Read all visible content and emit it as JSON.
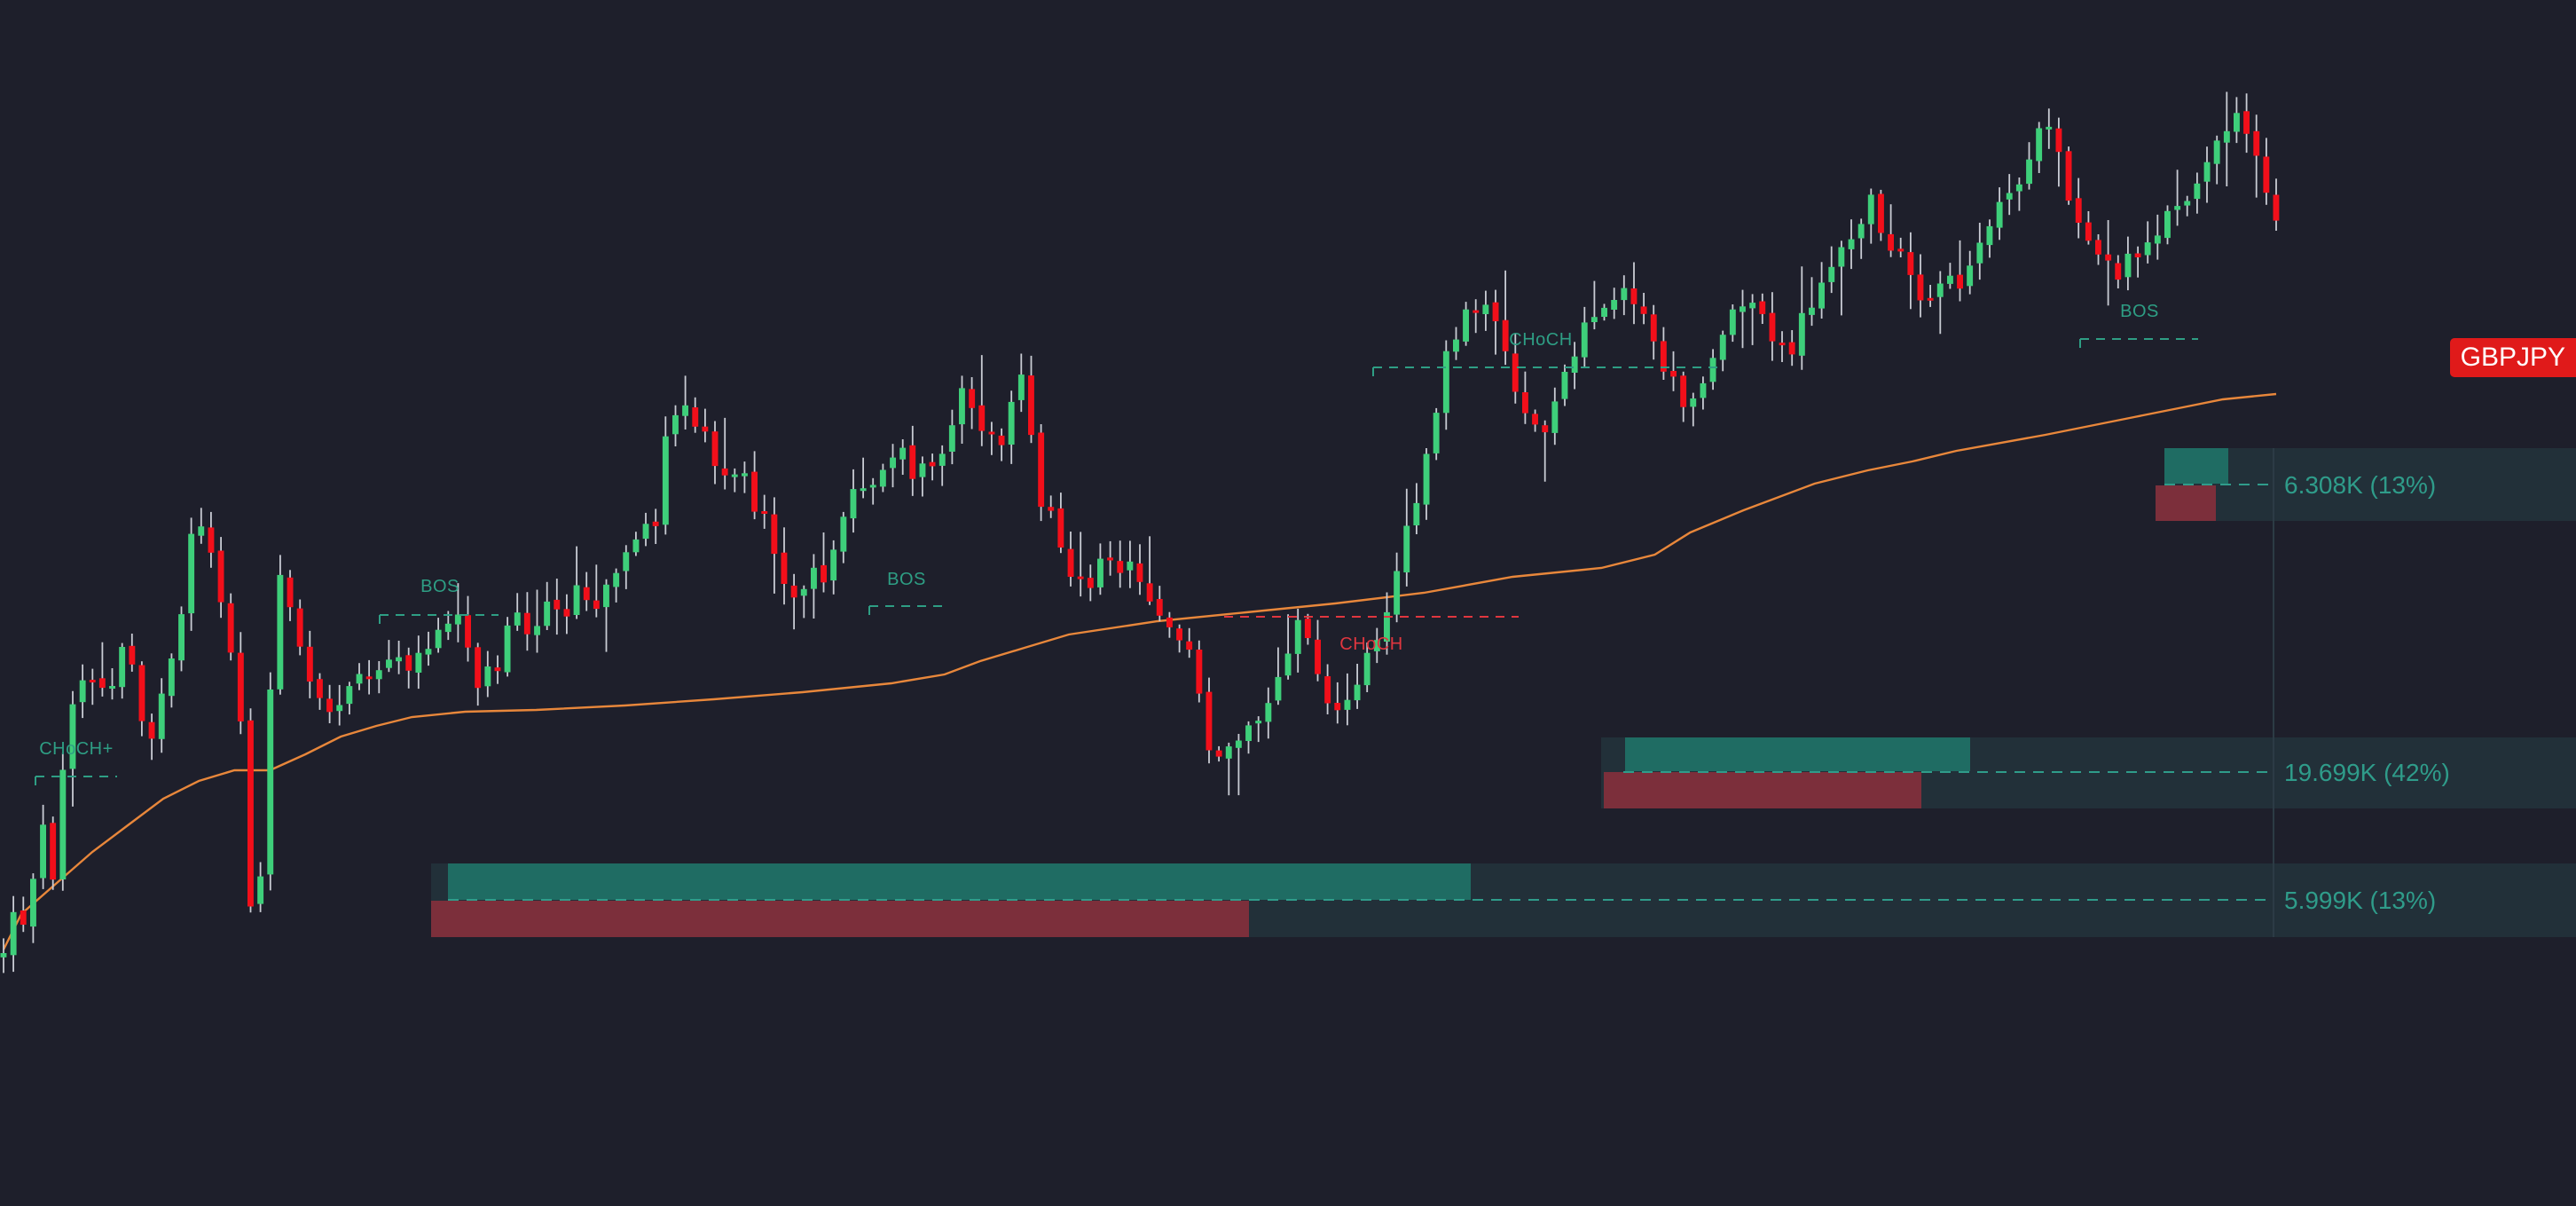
{
  "symbol": "GBPJPY",
  "colors": {
    "background": "#1e1f2b",
    "bullish_candle": "#3ecf7a",
    "bearish_candle": "#f20f1a",
    "wick": "#c9ccd4",
    "moving_average": "#e8873b",
    "bullish_structure": "#2e9e84",
    "bearish_structure": "#e0363f",
    "zone_label": "#2f9c8a",
    "bull_volume_bar": "#1f6c63",
    "bear_volume_bar": "#7c2f3b",
    "zone_background": "#223039",
    "symbol_badge": "#e01a1a"
  },
  "chart_data": {
    "type": "candlestick",
    "title": "",
    "xlabel": "",
    "ylabel": "",
    "grid": false,
    "legend": "none",
    "price_range": [
      0,
      1359
    ],
    "candle_count": 231,
    "anchors": [
      [
        0,
        1070
      ],
      [
        10,
        1010
      ],
      [
        12,
        1050
      ],
      [
        20,
        935
      ],
      [
        24,
        935
      ],
      [
        27,
        1010
      ],
      [
        32,
        880
      ],
      [
        38,
        790
      ],
      [
        46,
        760
      ],
      [
        60,
        790
      ],
      [
        68,
        720
      ],
      [
        76,
        760
      ],
      [
        82,
        860
      ],
      [
        85,
        810
      ],
      [
        92,
        780
      ],
      [
        100,
        715
      ],
      [
        104,
        640
      ],
      [
        110,
        580
      ],
      [
        118,
        620
      ],
      [
        126,
        700
      ],
      [
        132,
        780
      ],
      [
        134,
        800
      ],
      [
        138,
        950
      ],
      [
        142,
        1065
      ],
      [
        148,
        950
      ],
      [
        152,
        760
      ],
      [
        157,
        655
      ],
      [
        163,
        690
      ],
      [
        170,
        750
      ],
      [
        178,
        775
      ],
      [
        186,
        800
      ],
      [
        192,
        790
      ],
      [
        200,
        740
      ],
      [
        208,
        770
      ],
      [
        216,
        740
      ],
      [
        224,
        745
      ],
      [
        232,
        770
      ],
      [
        238,
        720
      ],
      [
        244,
        725
      ],
      [
        252,
        700
      ],
      [
        260,
        690
      ],
      [
        268,
        770
      ],
      [
        274,
        760
      ],
      [
        282,
        740
      ],
      [
        286,
        700
      ],
      [
        290,
        670
      ],
      [
        296,
        710
      ],
      [
        304,
        690
      ],
      [
        308,
        670
      ],
      [
        312,
        700
      ],
      [
        318,
        690
      ],
      [
        326,
        660
      ],
      [
        334,
        690
      ],
      [
        342,
        670
      ],
      [
        348,
        645
      ],
      [
        356,
        630
      ],
      [
        362,
        600
      ],
      [
        370,
        585
      ],
      [
        376,
        500
      ],
      [
        382,
        470
      ],
      [
        388,
        455
      ],
      [
        394,
        480
      ],
      [
        398,
        490
      ],
      [
        402,
        510
      ],
      [
        408,
        520
      ],
      [
        414,
        540
      ],
      [
        420,
        540
      ],
      [
        425,
        560
      ],
      [
        428,
        575
      ],
      [
        434,
        590
      ],
      [
        440,
        640
      ],
      [
        446,
        670
      ],
      [
        452,
        660
      ],
      [
        458,
        640
      ],
      [
        464,
        650
      ],
      [
        470,
        640
      ],
      [
        476,
        590
      ],
      [
        480,
        560
      ],
      [
        486,
        550
      ],
      [
        492,
        540
      ],
      [
        498,
        530
      ],
      [
        504,
        510
      ],
      [
        508,
        500
      ],
      [
        512,
        520
      ],
      [
        518,
        540
      ],
      [
        526,
        520
      ],
      [
        530,
        520
      ],
      [
        536,
        505
      ],
      [
        540,
        470
      ],
      [
        544,
        450
      ],
      [
        548,
        460
      ],
      [
        552,
        480
      ],
      [
        558,
        470
      ],
      [
        564,
        490
      ],
      [
        568,
        500
      ],
      [
        572,
        450
      ],
      [
        578,
        420
      ],
      [
        586,
        540
      ],
      [
        588,
        560
      ],
      [
        592,
        580
      ],
      [
        596,
        590
      ],
      [
        598,
        590
      ],
      [
        602,
        620
      ],
      [
        606,
        640
      ],
      [
        614,
        660
      ],
      [
        618,
        650
      ],
      [
        624,
        610
      ],
      [
        630,
        630
      ],
      [
        634,
        640
      ],
      [
        644,
        640
      ],
      [
        648,
        660
      ],
      [
        652,
        680
      ],
      [
        658,
        700
      ],
      [
        664,
        720
      ],
      [
        672,
        730
      ],
      [
        676,
        738
      ],
      [
        680,
        800
      ],
      [
        686,
        850
      ],
      [
        692,
        870
      ],
      [
        698,
        840
      ],
      [
        706,
        820
      ],
      [
        710,
        810
      ],
      [
        716,
        800
      ],
      [
        720,
        780
      ],
      [
        724,
        760
      ],
      [
        728,
        740
      ],
      [
        732,
        730
      ],
      [
        736,
        700
      ],
      [
        740,
        710
      ],
      [
        744,
        760
      ],
      [
        748,
        780
      ],
      [
        752,
        800
      ],
      [
        758,
        790
      ],
      [
        764,
        800
      ],
      [
        770,
        770
      ],
      [
        776,
        730
      ],
      [
        782,
        700
      ],
      [
        788,
        660
      ],
      [
        794,
        610
      ],
      [
        800,
        570
      ],
      [
        804,
        560
      ],
      [
        808,
        520
      ],
      [
        812,
        500
      ],
      [
        814,
        440
      ],
      [
        818,
        410
      ],
      [
        824,
        380
      ],
      [
        830,
        360
      ],
      [
        836,
        340
      ],
      [
        842,
        330
      ],
      [
        848,
        360
      ],
      [
        856,
        420
      ],
      [
        860,
        450
      ],
      [
        866,
        470
      ],
      [
        872,
        490
      ],
      [
        878,
        460
      ],
      [
        884,
        440
      ],
      [
        890,
        410
      ],
      [
        896,
        380
      ],
      [
        904,
        350
      ],
      [
        912,
        330
      ],
      [
        920,
        320
      ],
      [
        928,
        350
      ],
      [
        936,
        380
      ],
      [
        944,
        420
      ],
      [
        952,
        450
      ],
      [
        958,
        440
      ],
      [
        964,
        430
      ],
      [
        970,
        400
      ],
      [
        976,
        380
      ],
      [
        982,
        360
      ],
      [
        988,
        340
      ],
      [
        994,
        340
      ],
      [
        1000,
        360
      ],
      [
        1006,
        380
      ],
      [
        1012,
        400
      ],
      [
        1016,
        390
      ],
      [
        1022,
        350
      ],
      [
        1026,
        340
      ],
      [
        1032,
        320
      ],
      [
        1038,
        300
      ],
      [
        1046,
        280
      ],
      [
        1048,
        270
      ],
      [
        1052,
        260
      ],
      [
        1056,
        240
      ],
      [
        1060,
        230
      ],
      [
        1064,
        250
      ],
      [
        1068,
        260
      ],
      [
        1074,
        280
      ],
      [
        1078,
        300
      ],
      [
        1082,
        320
      ],
      [
        1086,
        340
      ],
      [
        1090,
        350
      ],
      [
        1098,
        330
      ],
      [
        1104,
        320
      ],
      [
        1110,
        320
      ],
      [
        1114,
        300
      ],
      [
        1118,
        280
      ],
      [
        1122,
        270
      ],
      [
        1126,
        250
      ],
      [
        1130,
        240
      ],
      [
        1134,
        230
      ],
      [
        1138,
        220
      ],
      [
        1142,
        210
      ],
      [
        1146,
        190
      ],
      [
        1150,
        170
      ],
      [
        1154,
        160
      ],
      [
        1158,
        150
      ],
      [
        1160,
        150
      ],
      [
        1166,
        180
      ],
      [
        1170,
        200
      ],
      [
        1174,
        240
      ],
      [
        1178,
        260
      ],
      [
        1182,
        270
      ],
      [
        1186,
        280
      ],
      [
        1190,
        290
      ],
      [
        1194,
        300
      ],
      [
        1198,
        310
      ],
      [
        1204,
        300
      ],
      [
        1208,
        290
      ],
      [
        1212,
        280
      ],
      [
        1216,
        270
      ],
      [
        1220,
        260
      ],
      [
        1224,
        250
      ],
      [
        1230,
        240
      ],
      [
        1236,
        230
      ],
      [
        1242,
        220
      ],
      [
        1248,
        200
      ],
      [
        1254,
        180
      ],
      [
        1256,
        170
      ],
      [
        1258,
        160
      ],
      [
        1262,
        150
      ],
      [
        1266,
        140
      ],
      [
        1272,
        130
      ],
      [
        1278,
        170
      ],
      [
        1282,
        200
      ],
      [
        1286,
        220
      ],
      [
        1290,
        240
      ]
    ],
    "moving_average": [
      [
        0,
        1070
      ],
      [
        20,
        1030
      ],
      [
        60,
        995
      ],
      [
        100,
        960
      ],
      [
        140,
        930
      ],
      [
        180,
        900
      ],
      [
        220,
        880
      ],
      [
        260,
        868
      ],
      [
        300,
        868
      ],
      [
        340,
        850
      ],
      [
        380,
        830
      ],
      [
        420,
        818
      ],
      [
        460,
        808
      ],
      [
        520,
        802
      ],
      [
        600,
        800
      ],
      [
        700,
        795
      ],
      [
        800,
        788
      ],
      [
        900,
        780
      ],
      [
        1000,
        770
      ],
      [
        1060,
        760
      ],
      [
        1100,
        745
      ],
      [
        1150,
        730
      ],
      [
        1200,
        715
      ],
      [
        1300,
        700
      ],
      [
        1400,
        690
      ],
      [
        1500,
        680
      ],
      [
        1600,
        668
      ],
      [
        1700,
        650
      ],
      [
        1800,
        640
      ],
      [
        1860,
        625
      ],
      [
        1900,
        600
      ],
      [
        1960,
        575
      ],
      [
        2000,
        560
      ],
      [
        2040,
        545
      ],
      [
        2100,
        530
      ],
      [
        2150,
        520
      ],
      [
        2200,
        508
      ],
      [
        2300,
        490
      ],
      [
        2400,
        470
      ],
      [
        2450,
        460
      ],
      [
        2500,
        450
      ],
      [
        2560,
        444
      ]
    ],
    "structure_labels": [
      {
        "text": "CHoCH+",
        "type": "bullish",
        "level": 875
      },
      {
        "text": "BOS",
        "type": "bullish",
        "level": 693
      },
      {
        "text": "BOS",
        "type": "bullish",
        "level": 683
      },
      {
        "text": "CHoCH",
        "type": "bearish",
        "level": 695
      },
      {
        "text": "CHoCH",
        "type": "bullish",
        "level": 414
      },
      {
        "text": "BOS",
        "type": "bullish",
        "level": 382
      }
    ],
    "volume_zones": [
      {
        "label": "6.308K (13%)",
        "bull_share": 0.13,
        "bear_share": 0.13
      },
      {
        "label": "19.699K (42%)",
        "bull_share": 0.42,
        "bear_share": 0.42
      },
      {
        "label": "5.999K (13%)",
        "bull_share": 0.13,
        "bear_share": 0.13
      }
    ]
  }
}
